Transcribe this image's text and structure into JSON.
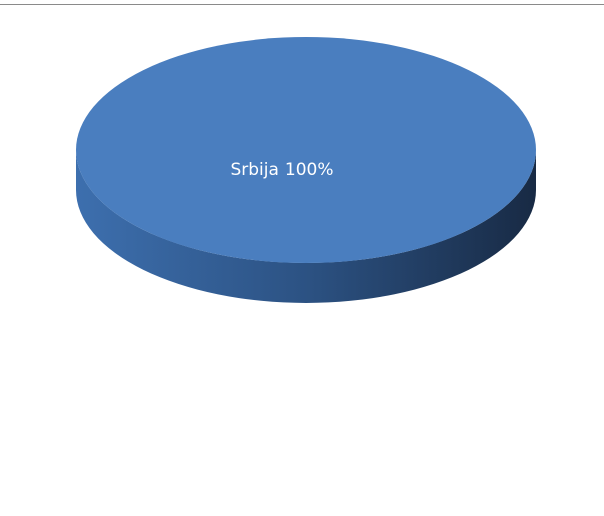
{
  "chart_data": {
    "type": "pie",
    "categories": [
      "Srbija"
    ],
    "values": [
      100
    ],
    "value_labels": [
      "100%"
    ],
    "colors": [
      "#4a7ebf"
    ]
  }
}
